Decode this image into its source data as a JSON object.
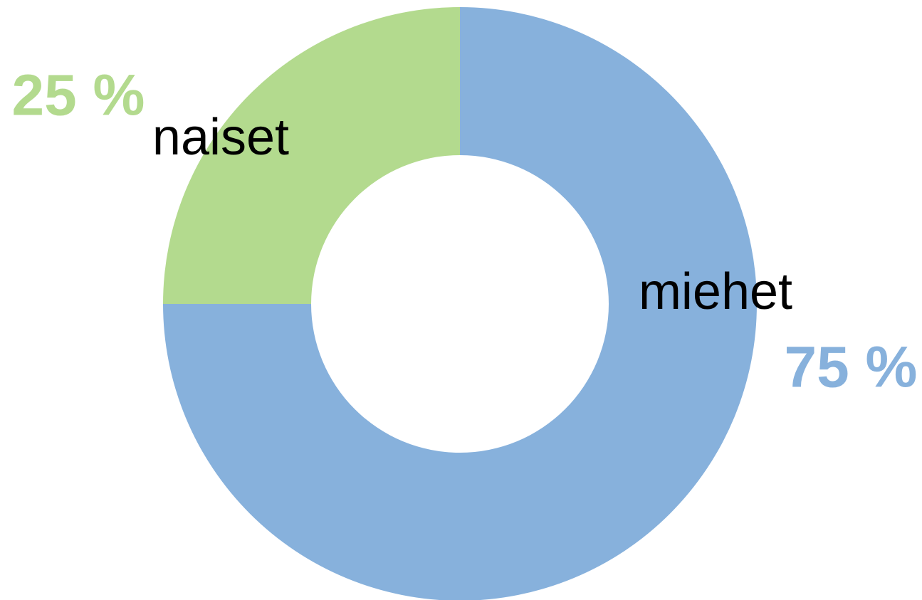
{
  "chart_data": {
    "type": "donut",
    "categories": [
      "miehet",
      "naiset"
    ],
    "values": [
      75,
      25
    ],
    "value_labels": [
      "75 %",
      "25 %"
    ],
    "colors": [
      "#87b1dc",
      "#b3da8e"
    ]
  }
}
